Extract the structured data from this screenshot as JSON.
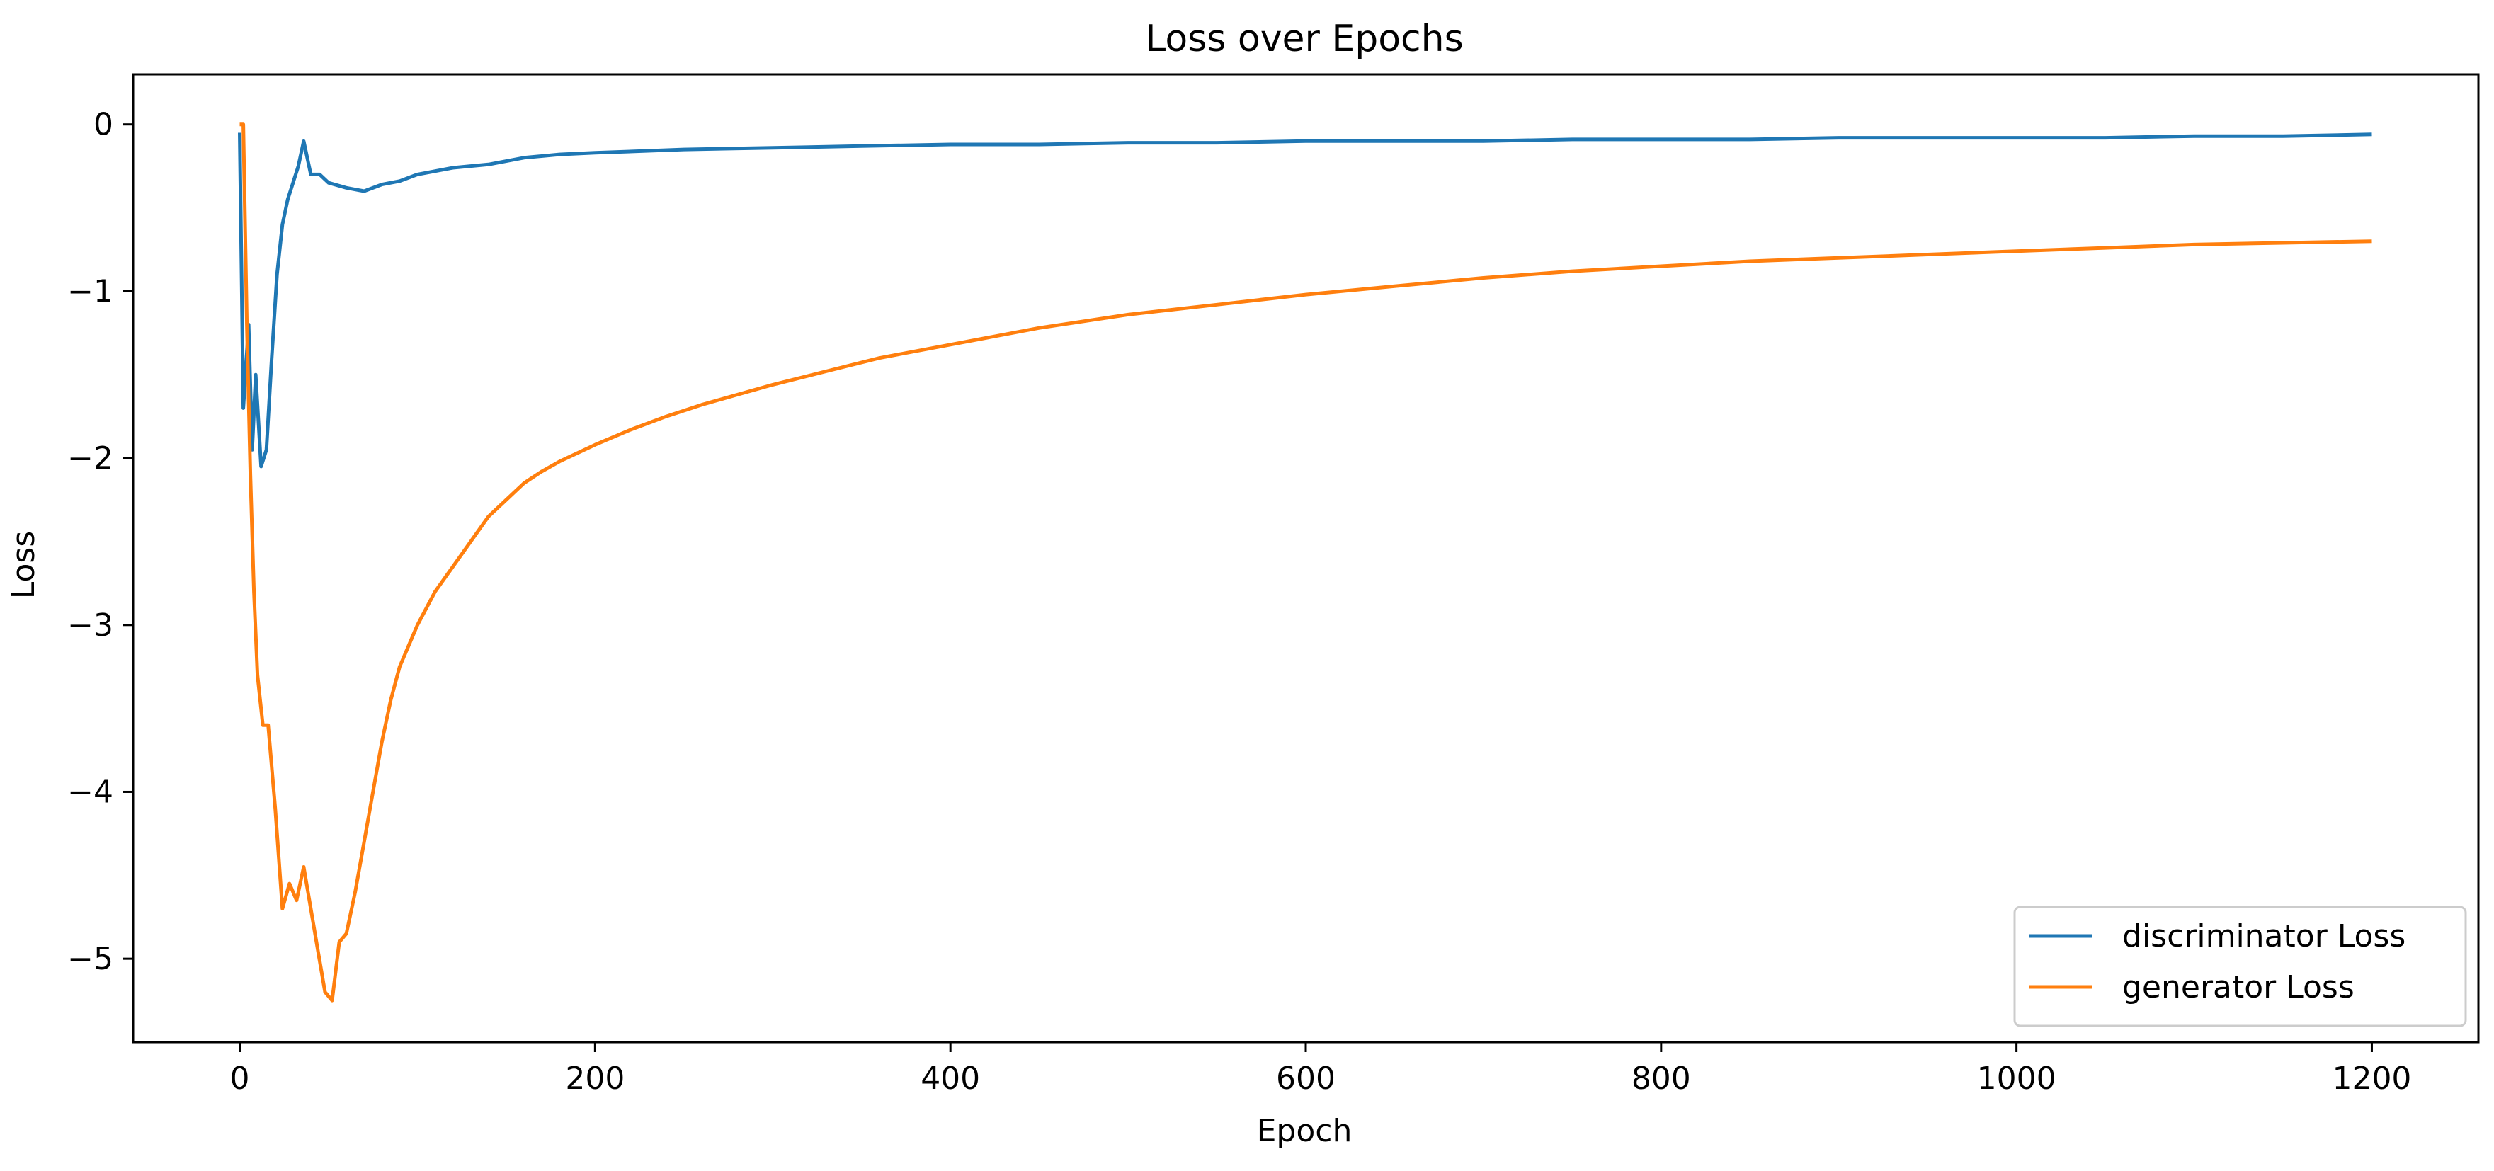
{
  "chart_data": {
    "type": "line",
    "title": "Loss over Epochs",
    "xlabel": "Epoch",
    "ylabel": "Loss",
    "xlim": [
      -60,
      1260
    ],
    "ylim": [
      -5.5,
      0.3
    ],
    "xticks": [
      0,
      200,
      400,
      600,
      800,
      1000,
      1200
    ],
    "xtick_labels": [
      "0",
      "200",
      "400",
      "600",
      "800",
      "1000",
      "1200"
    ],
    "yticks": [
      0,
      -1,
      -2,
      -3,
      -4,
      -5
    ],
    "ytick_labels": [
      "0",
      "−1",
      "−2",
      "−3",
      "−4",
      "−5"
    ],
    "grid": false,
    "legend_position": "bottom-right",
    "series": [
      {
        "name": "discriminator Loss",
        "color": "#1f77b4",
        "x": [
          0,
          2,
          5,
          7,
          9,
          12,
          15,
          18,
          21,
          24,
          27,
          30,
          33,
          36,
          40,
          45,
          50,
          60,
          70,
          80,
          90,
          100,
          120,
          140,
          160,
          180,
          200,
          250,
          300,
          350,
          400,
          450,
          500,
          550,
          600,
          650,
          700,
          750,
          800,
          850,
          900,
          950,
          1000,
          1050,
          1100,
          1150,
          1200
        ],
        "values": [
          -0.05,
          -1.7,
          -1.2,
          -1.95,
          -1.5,
          -2.05,
          -1.95,
          -1.4,
          -0.9,
          -0.6,
          -0.45,
          -0.35,
          -0.25,
          -0.1,
          -0.3,
          -0.3,
          -0.35,
          -0.38,
          -0.4,
          -0.36,
          -0.34,
          -0.3,
          -0.26,
          -0.24,
          -0.2,
          -0.18,
          -0.17,
          -0.15,
          -0.14,
          -0.13,
          -0.12,
          -0.12,
          -0.11,
          -0.11,
          -0.1,
          -0.1,
          -0.1,
          -0.09,
          -0.09,
          -0.09,
          -0.08,
          -0.08,
          -0.08,
          -0.08,
          -0.07,
          -0.07,
          -0.06
        ]
      },
      {
        "name": "generator Loss",
        "color": "#ff7f0e",
        "x": [
          0,
          2,
          4,
          6,
          8,
          10,
          13,
          16,
          20,
          24,
          28,
          32,
          36,
          40,
          44,
          48,
          52,
          56,
          60,
          65,
          70,
          75,
          80,
          85,
          90,
          100,
          110,
          120,
          130,
          140,
          150,
          160,
          170,
          180,
          190,
          200,
          220,
          240,
          260,
          280,
          300,
          330,
          360,
          400,
          450,
          500,
          550,
          600,
          650,
          700,
          750,
          800,
          850,
          900,
          950,
          1000,
          1050,
          1100,
          1150,
          1200
        ],
        "values": [
          0.0,
          0.0,
          -1.2,
          -2.1,
          -2.8,
          -3.3,
          -3.6,
          -3.6,
          -4.1,
          -4.7,
          -4.55,
          -4.65,
          -4.45,
          -4.7,
          -4.95,
          -5.2,
          -5.25,
          -4.9,
          -4.85,
          -4.6,
          -4.3,
          -4.0,
          -3.7,
          -3.45,
          -3.25,
          -3.0,
          -2.8,
          -2.65,
          -2.5,
          -2.35,
          -2.25,
          -2.15,
          -2.08,
          -2.02,
          -1.97,
          -1.92,
          -1.83,
          -1.75,
          -1.68,
          -1.62,
          -1.56,
          -1.48,
          -1.4,
          -1.32,
          -1.22,
          -1.14,
          -1.08,
          -1.02,
          -0.97,
          -0.92,
          -0.88,
          -0.85,
          -0.82,
          -0.8,
          -0.78,
          -0.76,
          -0.74,
          -0.72,
          -0.71,
          -0.7
        ]
      }
    ]
  }
}
